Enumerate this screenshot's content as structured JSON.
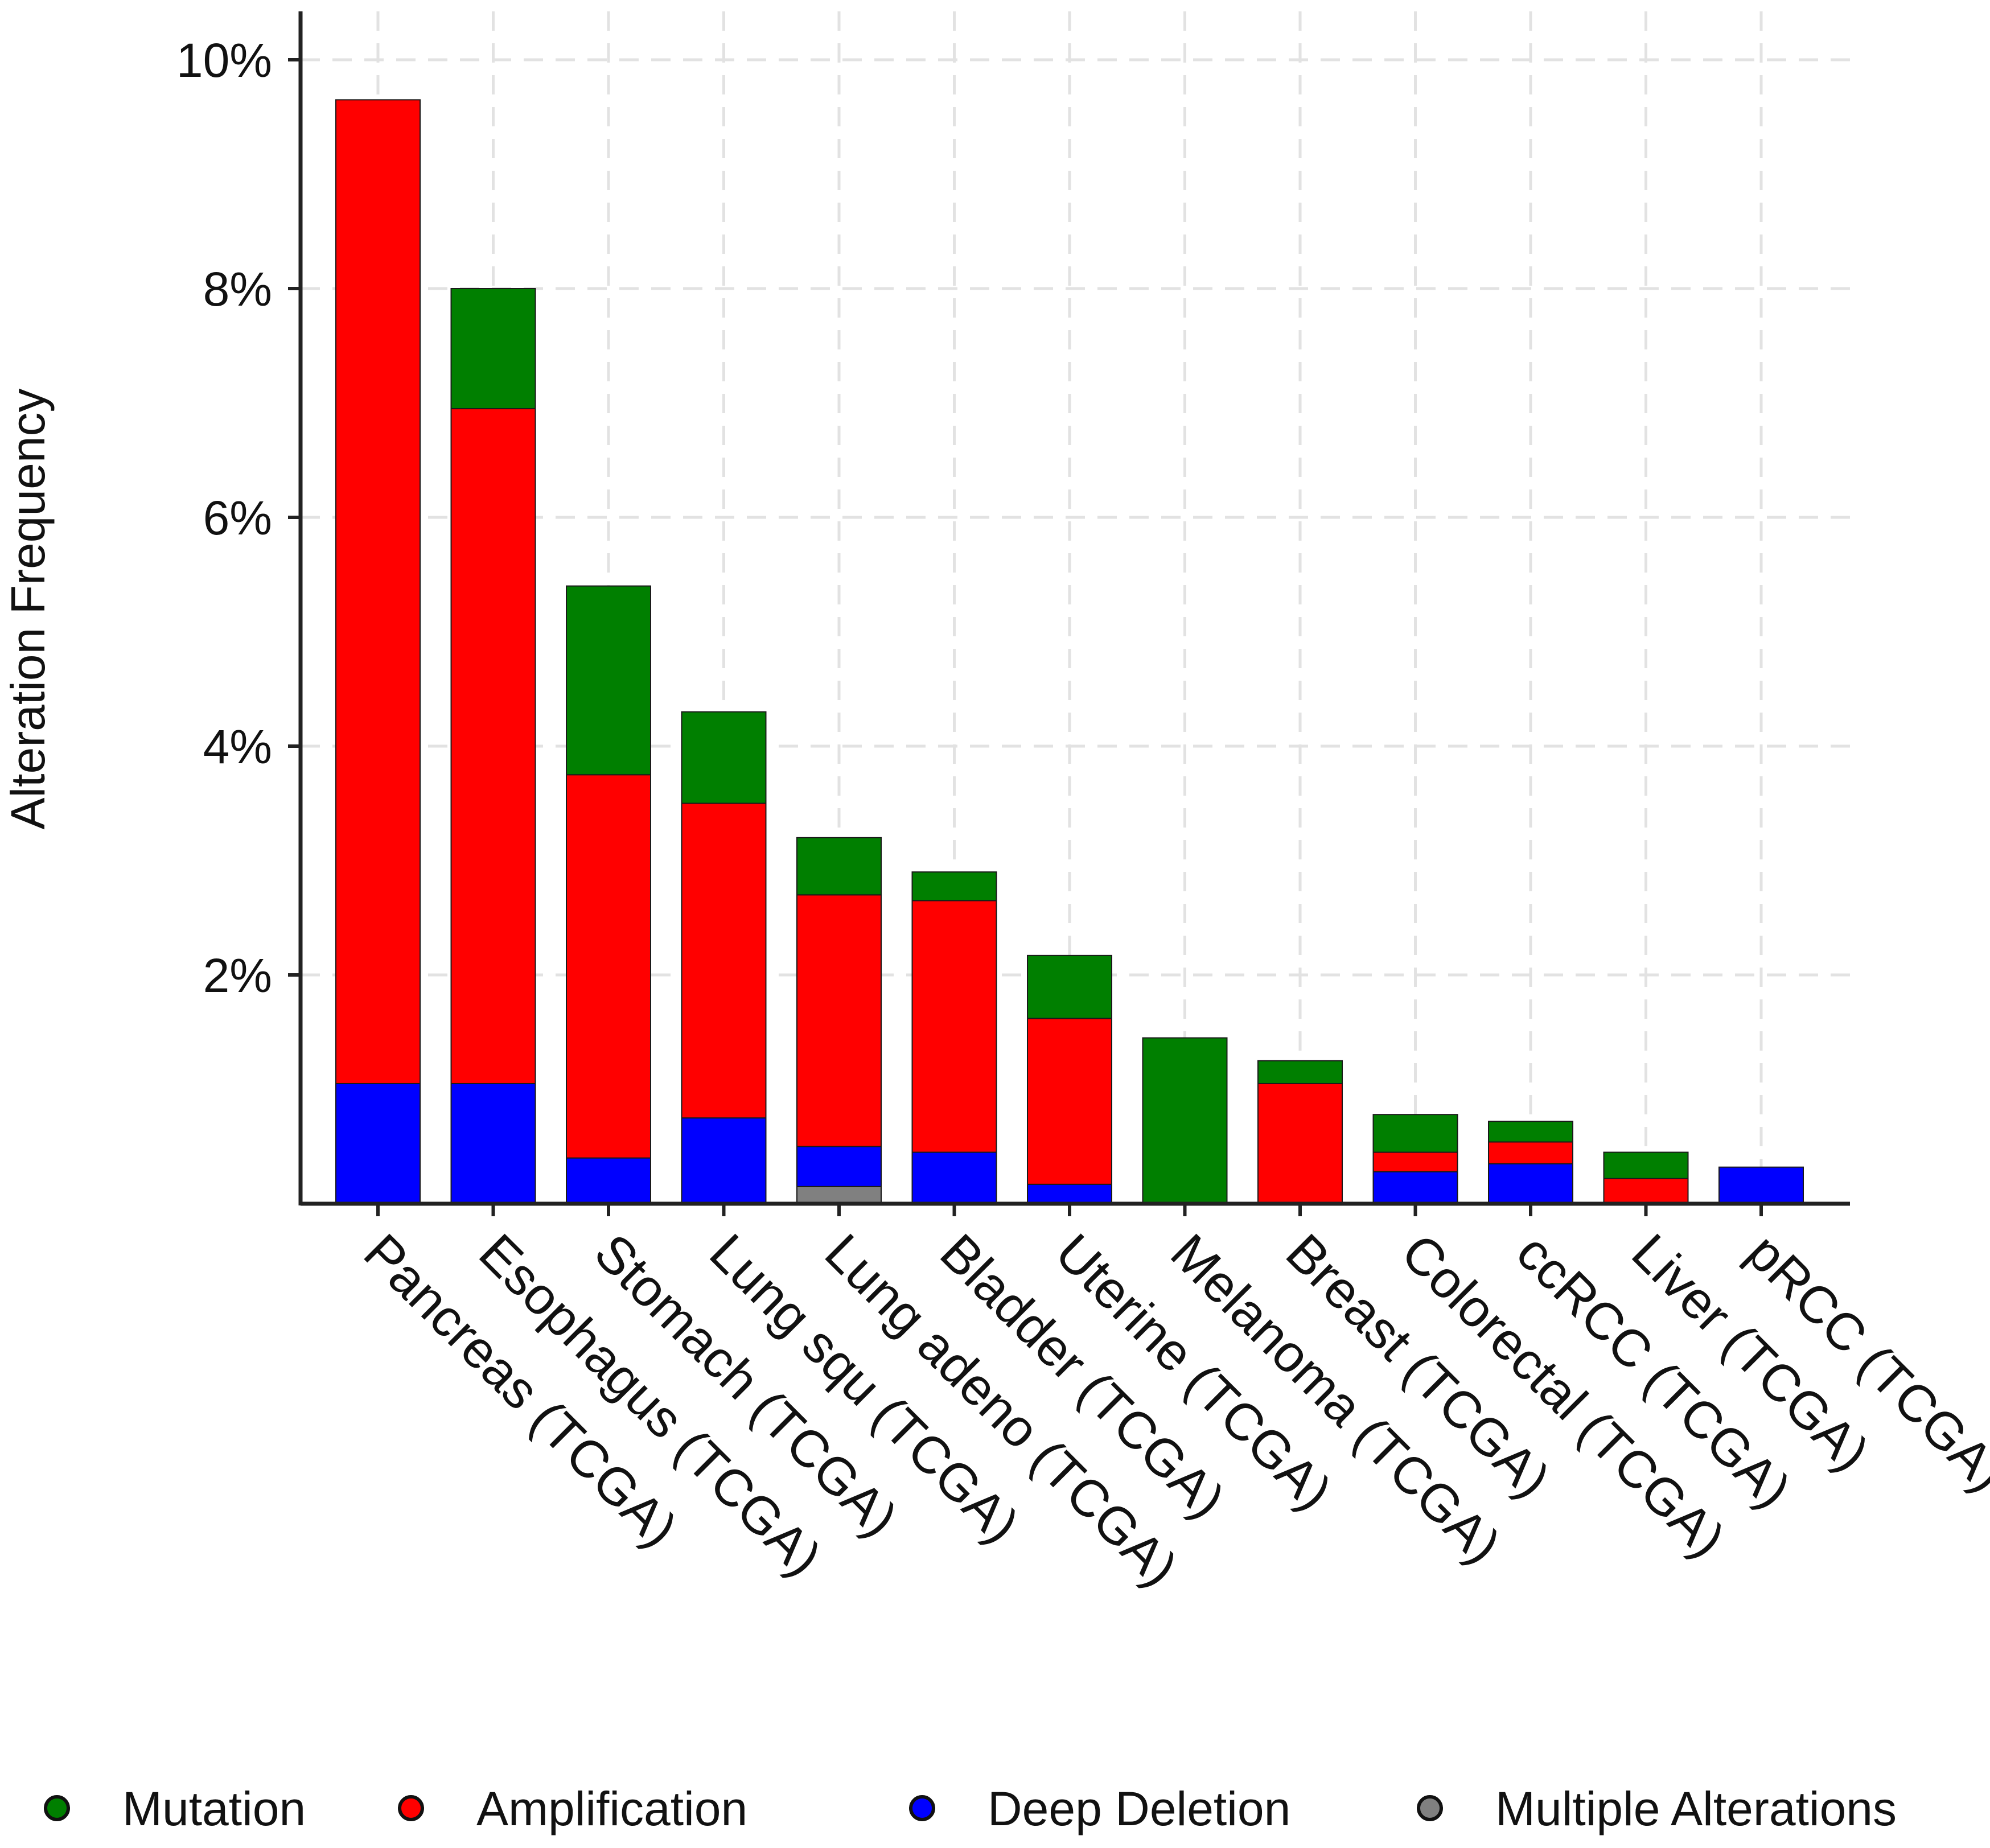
{
  "chart_data": {
    "type": "bar",
    "stacked": true,
    "title": "",
    "xlabel": "",
    "ylabel": "Alteration Frequency",
    "ylim": [
      0,
      10
    ],
    "ytick_values": [
      2,
      4,
      6,
      8,
      10
    ],
    "ytick_labels": [
      "2%",
      "4%",
      "6%",
      "8%",
      "10%"
    ],
    "grid": true,
    "legend_position": "bottom",
    "categories": [
      "Pancreas (TCGA)",
      "Esophagus (TCGA)",
      "Stomach (TCGA)",
      "Lung squ (TCGA)",
      "Lung adeno (TCGA)",
      "Bladder (TCGA)",
      "Uterine (TCGA)",
      "Melanoma (TCGA)",
      "Breast (TCGA)",
      "Colorectal (TCGA)",
      "ccRCC (TCGA)",
      "Liver (TCGA)",
      "pRCC (TCGA)"
    ],
    "series": [
      {
        "name": "Multiple Alterations",
        "color": "#808080",
        "values": [
          0,
          0,
          0,
          0,
          0.15,
          0,
          0,
          0,
          0,
          0,
          0,
          0,
          0
        ]
      },
      {
        "name": "Deep Deletion",
        "color": "#0000ff",
        "values": [
          1.05,
          1.05,
          0.4,
          0.75,
          0.35,
          0.45,
          0.17,
          0,
          0,
          0.28,
          0.35,
          0,
          0.32
        ]
      },
      {
        "name": "Amplification",
        "color": "#ff0000",
        "values": [
          8.6,
          5.9,
          3.35,
          2.75,
          2.2,
          2.2,
          1.45,
          0,
          1.05,
          0.17,
          0.19,
          0.22,
          0
        ]
      },
      {
        "name": "Mutation",
        "color": "#007f00",
        "values": [
          0,
          1.05,
          1.65,
          0.8,
          0.5,
          0.25,
          0.55,
          1.45,
          0.2,
          0.33,
          0.18,
          0.23,
          0
        ]
      }
    ],
    "legend_order": [
      "Mutation",
      "Amplification",
      "Deep Deletion",
      "Multiple Alterations"
    ]
  }
}
